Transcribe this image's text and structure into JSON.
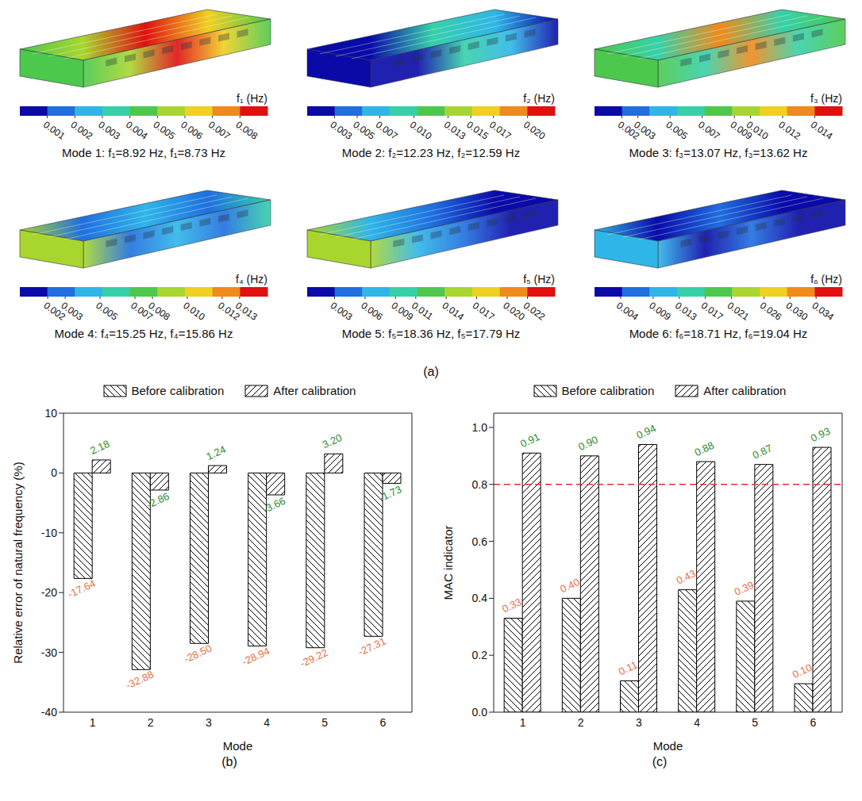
{
  "figure_a": {
    "panel_label": "(a)",
    "modes": [
      {
        "caption": "Mode 1: f₁=8.92 Hz, f₁=8.73 Hz",
        "colorbar": {
          "title": "f₁ (Hz)",
          "range": [
            0,
            0.009
          ],
          "ticks": [
            0.001,
            0.002,
            0.003,
            0.004,
            0.005,
            0.006,
            0.007,
            0.008
          ]
        }
      },
      {
        "caption": "Mode 2: f₂=12.23 Hz, f₂=12.59 Hz",
        "colorbar": {
          "title": "f₂ (Hz)",
          "range": [
            0.0006,
            0.0224
          ],
          "ticks": [
            0.003,
            0.005,
            0.007,
            {
              "value": 0.01,
              "label": "0.010"
            },
            0.013,
            0.015,
            0.017,
            {
              "value": 0.02,
              "label": "0.020"
            }
          ]
        }
      },
      {
        "caption": "Mode 3: f₃=13.07 Hz, f₃=13.62 Hz",
        "colorbar": {
          "title": "f₃ (Hz)",
          "range": [
            0.0003,
            0.0157
          ],
          "ticks": [
            0.002,
            0.003,
            0.005,
            0.007,
            0.009,
            {
              "value": 0.01,
              "label": "0.010"
            },
            0.012,
            0.014
          ]
        }
      },
      {
        "caption": "Mode 4: f₄=15.25 Hz, f₄=15.86 Hz",
        "colorbar": {
          "title": "f₄ (Hz)",
          "range": [
            0.0004,
            0.0146
          ],
          "ticks": [
            0.002,
            0.003,
            0.005,
            0.007,
            0.008,
            {
              "value": 0.01,
              "label": "0.010"
            },
            0.012,
            0.013
          ]
        }
      },
      {
        "caption": "Mode 5: f₅=18.36 Hz, f₅=17.79 Hz",
        "colorbar": {
          "title": "f₅ (Hz)",
          "range": [
            0.0003,
            0.0247
          ],
          "ticks": [
            0.003,
            0.006,
            0.009,
            0.011,
            0.014,
            0.017,
            {
              "value": 0.02,
              "label": "0.020"
            },
            0.022
          ]
        }
      },
      {
        "caption": "Mode 6: f₆=18.71 Hz, f₆=19.04 Hz",
        "colorbar": {
          "title": "f₆ (Hz)",
          "range": [
            0,
            0.038
          ],
          "ticks": [
            0.004,
            0.009,
            0.013,
            0.017,
            0.021,
            0.026,
            {
              "value": 0.03,
              "label": "0.030"
            },
            0.034
          ]
        }
      }
    ]
  },
  "chart_data": [
    {
      "type": "bar",
      "panel_label": "(b)",
      "x_label": "Mode",
      "y_label": "Relative error of natural frequency (%)",
      "categories": [
        1,
        2,
        3,
        4,
        5,
        6
      ],
      "ylim": [
        -40,
        10
      ],
      "yticks": [
        -40,
        -30,
        -20,
        -10,
        0,
        10
      ],
      "legend": "top",
      "data_labels": true,
      "series": [
        {
          "name": "Before calibration",
          "color": "#000000",
          "values": [
            -17.64,
            -32.88,
            -28.5,
            -28.94,
            -29.22,
            -27.31
          ],
          "value_labels": [
            "-17.64",
            "-32.88",
            "-28.50",
            "-28.94",
            "-29.22",
            "-27.31"
          ]
        },
        {
          "name": "After calibration",
          "color": "#000000",
          "values": [
            2.18,
            -2.86,
            1.24,
            -3.66,
            3.2,
            -1.73
          ],
          "value_labels": [
            "2.18",
            "-2.86",
            "1.24",
            "-3.66",
            "3.20",
            "-1.73"
          ]
        }
      ]
    },
    {
      "type": "bar",
      "panel_label": "(c)",
      "x_label": "Mode",
      "y_label": "MAC indicator",
      "categories": [
        1,
        2,
        3,
        4,
        5,
        6
      ],
      "ylim": [
        0,
        1.05
      ],
      "yticks": [
        {
          "value": 0,
          "label": "0.0"
        },
        {
          "value": 0.2,
          "label": "0.2"
        },
        {
          "value": 0.4,
          "label": "0.4"
        },
        {
          "value": 0.6,
          "label": "0.6"
        },
        {
          "value": 0.8,
          "label": "0.8"
        },
        {
          "value": 1,
          "label": "1.0"
        }
      ],
      "legend": "top",
      "data_labels": true,
      "threshold": 0.8,
      "series": [
        {
          "name": "Before calibration",
          "color": "#000000",
          "values": [
            0.33,
            0.4,
            0.11,
            0.43,
            0.39,
            0.1
          ],
          "value_labels": [
            "0.33",
            "0.40",
            "0.11",
            "0.43",
            "0.39",
            "0.10"
          ]
        },
        {
          "name": "After calibration",
          "color": "#000000",
          "values": [
            0.91,
            0.9,
            0.94,
            0.88,
            0.87,
            0.93
          ],
          "value_labels": [
            "0.91",
            "0.90",
            "0.94",
            "0.88",
            "0.87",
            "0.93"
          ]
        }
      ]
    }
  ]
}
